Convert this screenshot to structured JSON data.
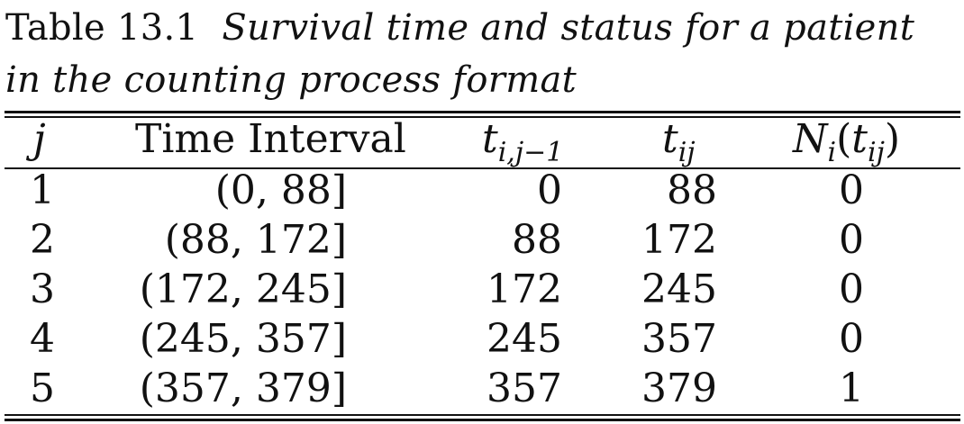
{
  "caption": {
    "label": "Table 13.1",
    "title": "Survival time and status for a patient in the counting process format"
  },
  "table": {
    "headers": {
      "j": "j",
      "interval": "Time Interval",
      "t_prev_base": "t",
      "t_prev_sub": "i,j−1",
      "t_cur_base": "t",
      "t_cur_sub": "ij",
      "n_base": "N",
      "n_sub": "i",
      "n_open": "(",
      "n_arg_base": "t",
      "n_arg_sub": "ij",
      "n_close": ")"
    },
    "rows": [
      {
        "j": "1",
        "interval": "(0, 88]",
        "t_prev": "0",
        "t_cur": "88",
        "n": "0"
      },
      {
        "j": "2",
        "interval": "(88, 172]",
        "t_prev": "88",
        "t_cur": "172",
        "n": "0"
      },
      {
        "j": "3",
        "interval": "(172, 245]",
        "t_prev": "172",
        "t_cur": "245",
        "n": "0"
      },
      {
        "j": "4",
        "interval": "(245, 357]",
        "t_prev": "245",
        "t_cur": "357",
        "n": "0"
      },
      {
        "j": "5",
        "interval": "(357, 379]",
        "t_prev": "357",
        "t_cur": "379",
        "n": "1"
      }
    ]
  }
}
